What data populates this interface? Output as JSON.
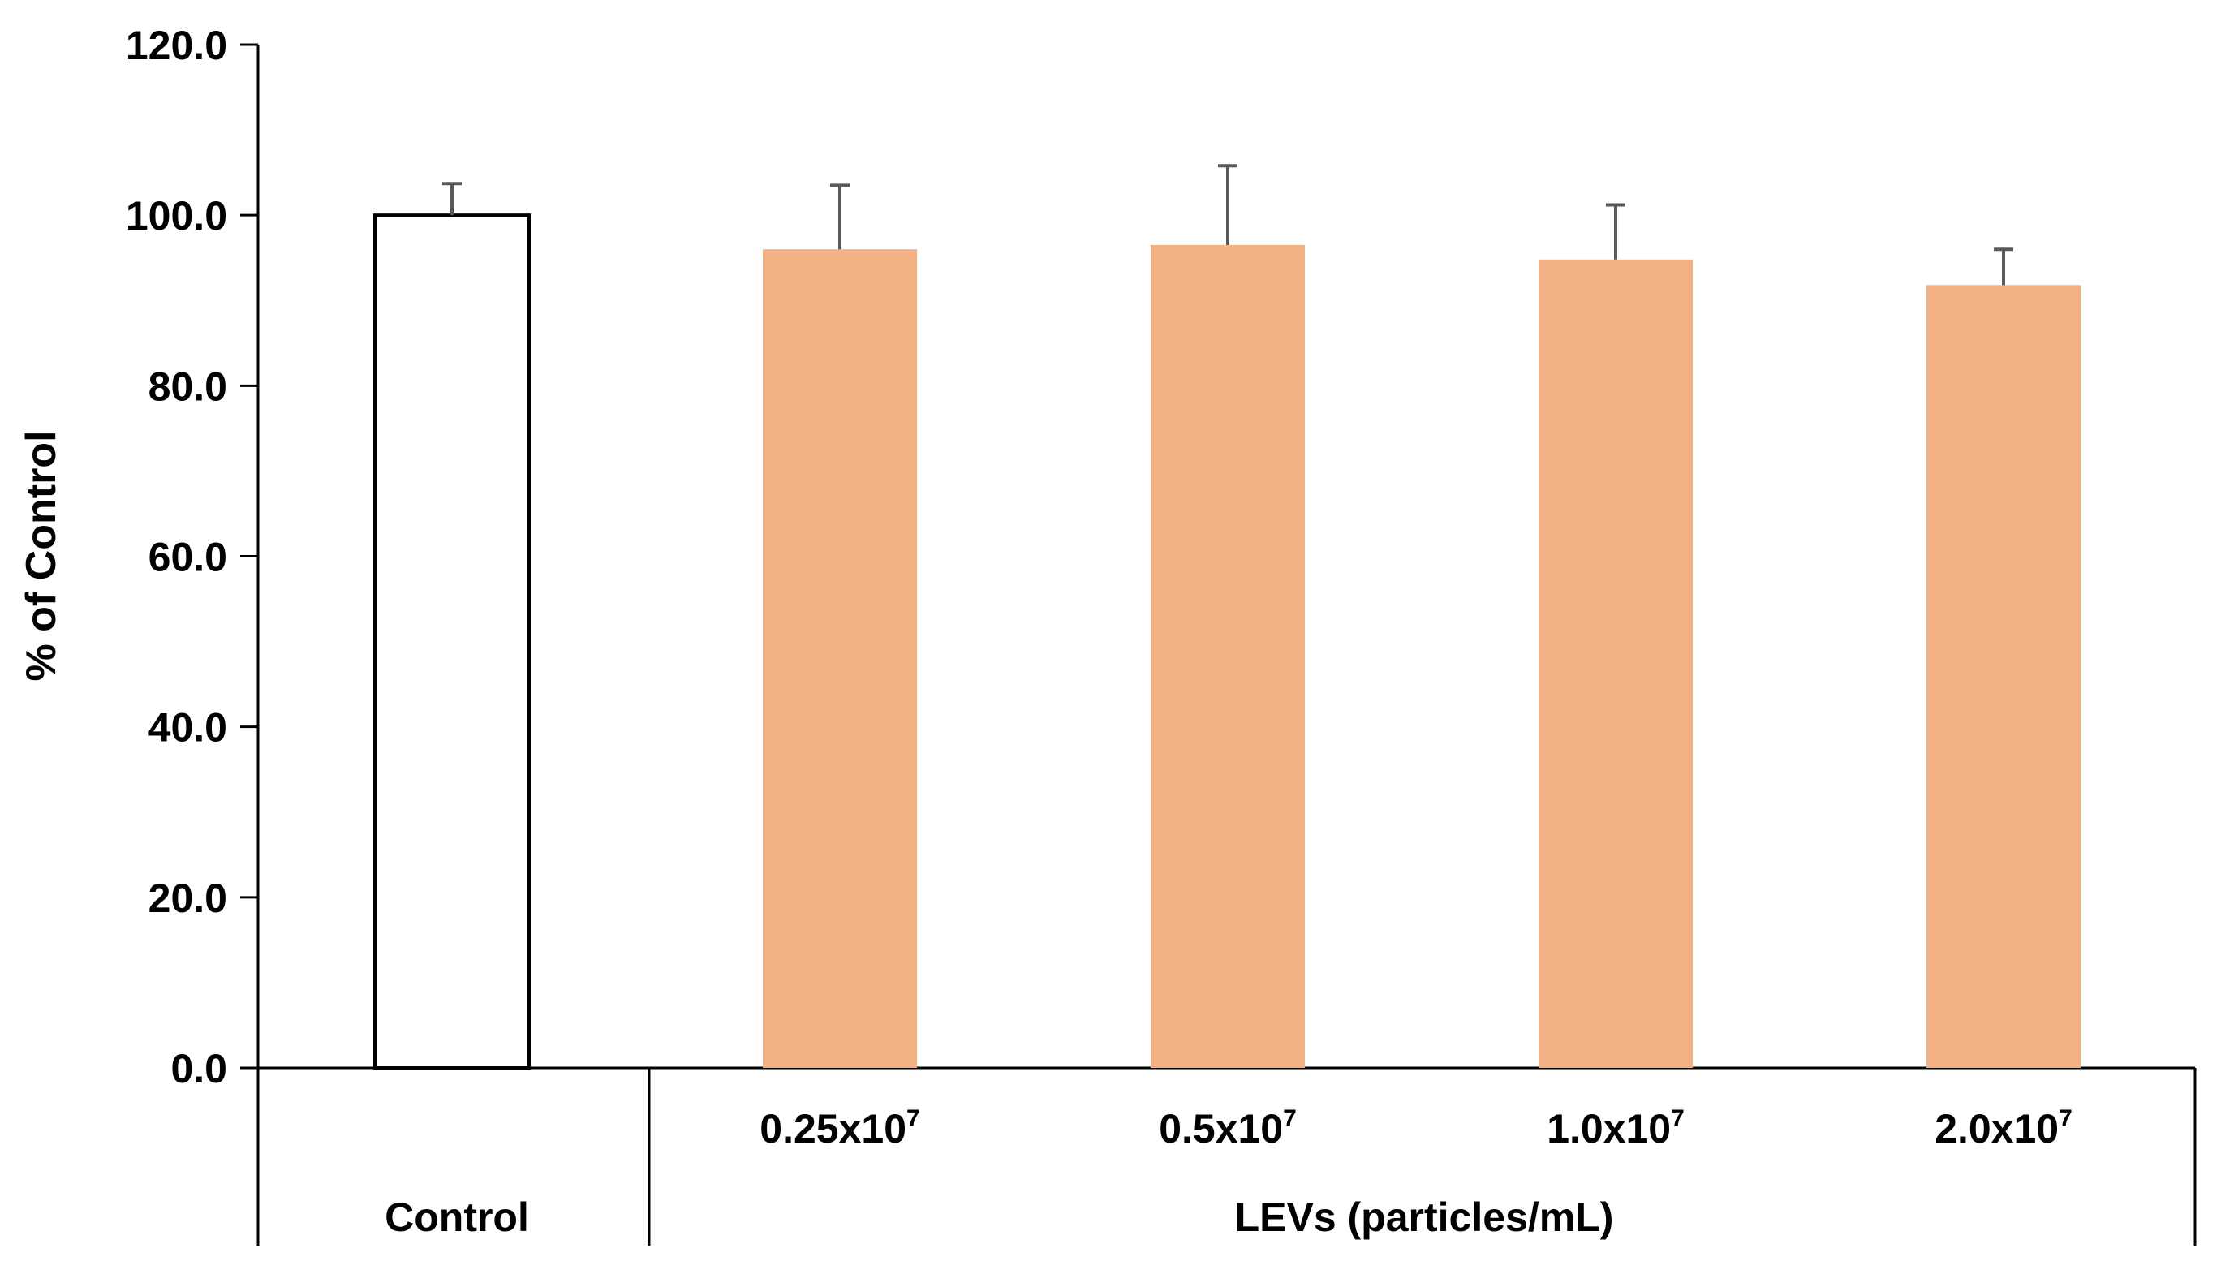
{
  "chart_data": {
    "type": "bar",
    "title": "",
    "ylabel": "% of Control",
    "xlabel": "",
    "ylim": [
      0,
      120
    ],
    "yticks": [
      "0.0",
      "20.0",
      "40.0",
      "60.0",
      "80.0",
      "100.0",
      "120.0"
    ],
    "grid": false,
    "categories": [
      {
        "base": "Control",
        "exp": ""
      },
      {
        "base": "0.25x10",
        "exp": "7"
      },
      {
        "base": "0.5x10",
        "exp": "7"
      },
      {
        "base": "1.0x10",
        "exp": "7"
      },
      {
        "base": "2.0x10",
        "exp": "7"
      }
    ],
    "values": [
      100.0,
      96.0,
      96.5,
      94.8,
      91.8
    ],
    "errors": [
      3.7,
      7.5,
      9.3,
      6.4,
      4.2
    ],
    "bar_colors": [
      "#ffffff",
      "#f2b083",
      "#f2b083",
      "#f2b083",
      "#f2b083"
    ],
    "bar_outline": [
      "#000000",
      "none",
      "none",
      "none",
      "none"
    ],
    "group_labels": {
      "control": "Control",
      "treatment": "LEVs (particles/mL)"
    }
  }
}
